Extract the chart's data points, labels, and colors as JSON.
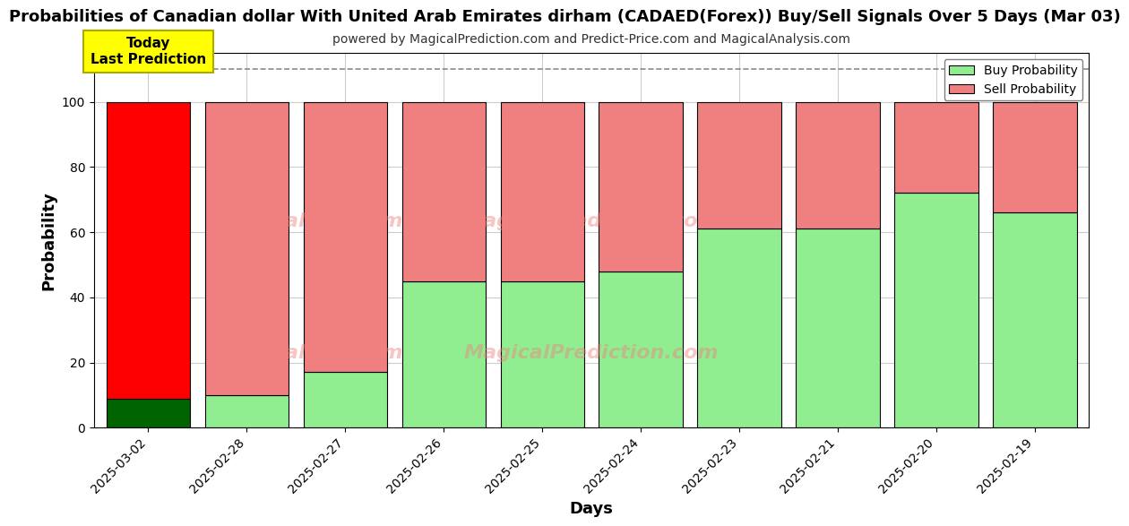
{
  "title": "Probabilities of Canadian dollar With United Arab Emirates dirham (CADAED(Forex)) Buy/Sell Signals Over 5 Days (Mar 03)",
  "subtitle": "powered by MagicalPrediction.com and Predict-Price.com and MagicalAnalysis.com",
  "xlabel": "Days",
  "ylabel": "Probability",
  "categories": [
    "2025-03-02",
    "2025-02-28",
    "2025-02-27",
    "2025-02-26",
    "2025-02-25",
    "2025-02-24",
    "2025-02-23",
    "2025-02-21",
    "2025-02-20",
    "2025-02-19"
  ],
  "buy_values": [
    9,
    10,
    17,
    45,
    45,
    48,
    61,
    61,
    72,
    66
  ],
  "sell_values": [
    91,
    90,
    83,
    55,
    55,
    52,
    39,
    39,
    28,
    34
  ],
  "today_buy_color": "#006400",
  "today_sell_color": "#FF0000",
  "buy_color": "#90EE90",
  "sell_color": "#F08080",
  "bar_edge_color": "#000000",
  "today_label": "Today\nLast Prediction",
  "today_label_bg": "#FFFF00",
  "dashed_line_y": 110,
  "ylim": [
    0,
    115
  ],
  "yticks": [
    0,
    20,
    40,
    60,
    80,
    100
  ],
  "legend_buy_label": "Buy Probability",
  "legend_sell_label": "Sell Probability",
  "watermark1": "calAnalysis.com",
  "watermark2": "MagicalPrediction.com",
  "watermark3": "calAnalysis.com",
  "watermark4": "MagicalPrediction.com",
  "title_fontsize": 13,
  "subtitle_fontsize": 10,
  "axis_label_fontsize": 13,
  "tick_fontsize": 10,
  "bar_width": 0.85,
  "plot_bg_color": "#ffffff",
  "fig_bg_color": "#ffffff",
  "grid_color": "#cccccc"
}
